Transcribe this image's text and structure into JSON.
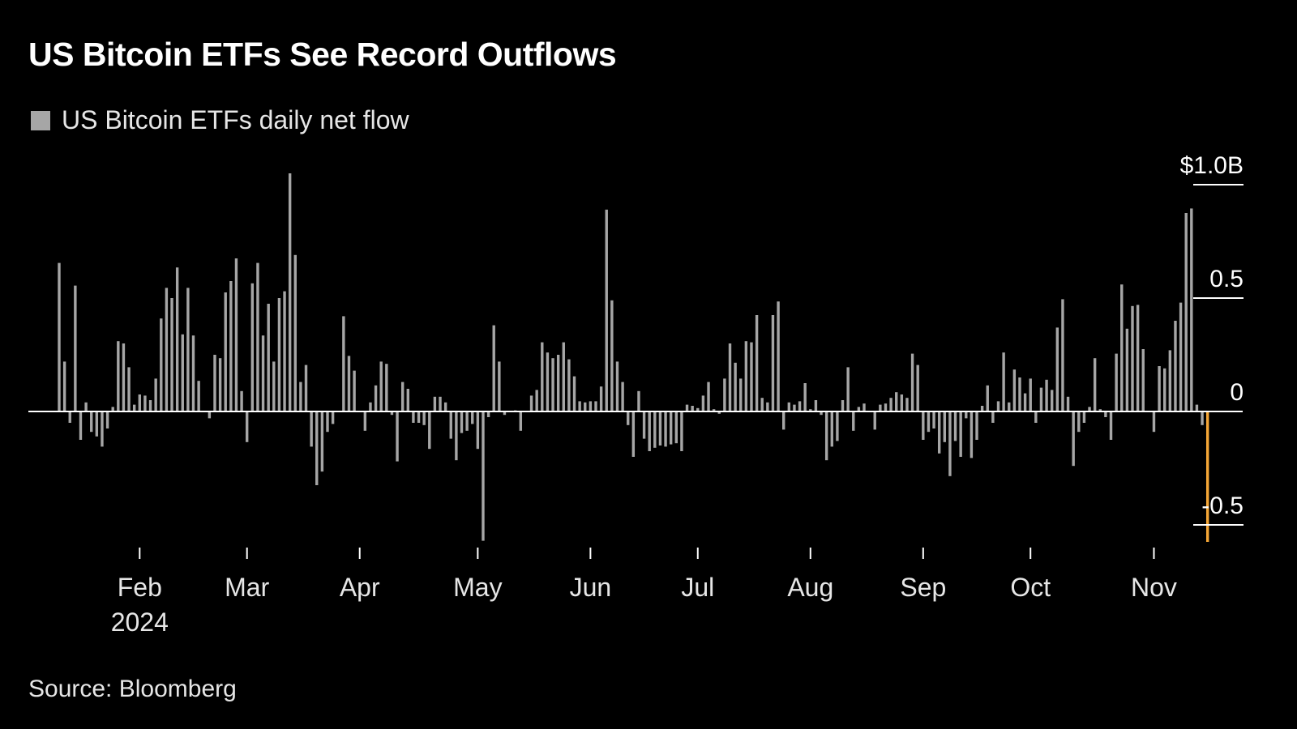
{
  "title": "US Bitcoin ETFs See Record Outflows",
  "source": "Source: Bloomberg",
  "colors": {
    "background": "#000000",
    "bar": "#a6a6a6",
    "highlight": "#f5a636",
    "axis": "#ffffff"
  },
  "chart_data": {
    "type": "bar",
    "title": "US Bitcoin ETFs See Record Outflows",
    "legend": {
      "entries": [
        "US Bitcoin ETFs daily net flow"
      ],
      "placement": "top-left"
    },
    "series": [
      {
        "name": "US Bitcoin ETFs daily net flow",
        "unit": "USD billions",
        "start_date": "2024-01-11",
        "frequency": "trading days",
        "values": [
          0.655,
          0.22,
          -0.05,
          0.555,
          -0.125,
          0.04,
          -0.09,
          -0.11,
          -0.155,
          -0.075,
          0.02,
          0.31,
          0.3,
          0.195,
          0.03,
          0.075,
          0.07,
          0.05,
          0.145,
          0.41,
          0.545,
          0.5,
          0.635,
          0.34,
          0.545,
          0.335,
          0.135,
          0.0,
          -0.03,
          0.25,
          0.235,
          0.525,
          0.575,
          0.675,
          0.09,
          -0.135,
          0.565,
          0.655,
          0.335,
          0.475,
          0.22,
          0.5,
          0.53,
          1.05,
          0.69,
          0.13,
          0.205,
          -0.155,
          -0.325,
          -0.265,
          -0.09,
          -0.055,
          0.0,
          0.42,
          0.245,
          0.18,
          0.0,
          -0.085,
          0.04,
          0.115,
          0.22,
          0.21,
          -0.015,
          -0.22,
          0.13,
          0.1,
          -0.05,
          -0.05,
          -0.06,
          -0.165,
          0.065,
          0.065,
          0.04,
          -0.12,
          -0.215,
          -0.095,
          -0.085,
          -0.055,
          -0.165,
          -0.57,
          -0.025,
          0.38,
          0.22,
          -0.015,
          0.0,
          0.005,
          -0.085,
          0.0,
          0.07,
          0.095,
          0.305,
          0.26,
          0.235,
          0.25,
          0.305,
          0.23,
          0.155,
          0.045,
          0.04,
          0.045,
          0.045,
          0.11,
          0.89,
          0.49,
          0.22,
          0.13,
          -0.06,
          -0.2,
          0.09,
          -0.12,
          -0.175,
          -0.16,
          -0.15,
          -0.155,
          -0.145,
          -0.14,
          -0.175,
          0.03,
          0.025,
          0.015,
          0.07,
          0.13,
          0.01,
          -0.01,
          0.145,
          0.3,
          0.215,
          0.145,
          0.31,
          0.305,
          0.425,
          0.06,
          0.04,
          0.425,
          0.485,
          -0.08,
          0.04,
          0.03,
          0.045,
          0.125,
          0.01,
          0.05,
          -0.015,
          -0.215,
          -0.155,
          -0.13,
          0.05,
          0.195,
          -0.085,
          0.02,
          0.035,
          0.0,
          -0.08,
          0.03,
          0.035,
          0.06,
          0.085,
          0.075,
          0.06,
          0.255,
          0.205,
          -0.125,
          -0.09,
          -0.075,
          -0.185,
          -0.135,
          -0.285,
          -0.13,
          -0.2,
          -0.03,
          -0.205,
          -0.125,
          0.025,
          0.115,
          -0.05,
          0.045,
          0.26,
          0.04,
          0.185,
          0.15,
          0.08,
          0.145,
          -0.05,
          0.105,
          0.14,
          0.095,
          0.37,
          0.495,
          0.065,
          -0.24,
          -0.09,
          -0.05,
          0.02,
          0.235,
          0.01,
          -0.025,
          -0.125,
          0.255,
          0.56,
          0.365,
          0.465,
          0.47,
          0.275,
          0.0,
          -0.09,
          0.2,
          0.19,
          0.27,
          0.4,
          0.48,
          0.875,
          0.895,
          0.03,
          -0.06,
          -0.575
        ],
        "highlight_last": true
      }
    ],
    "x_axis": {
      "ticks": [
        {
          "label": "Feb",
          "date": "2024-02-01",
          "index": 15
        },
        {
          "label": "Mar",
          "date": "2024-03-01",
          "index": 35
        },
        {
          "label": "Apr",
          "date": "2024-04-01",
          "index": 56
        },
        {
          "label": "May",
          "date": "2024-05-01",
          "index": 78
        },
        {
          "label": "Jun",
          "date": "2024-06-01",
          "index": 99
        },
        {
          "label": "Jul",
          "date": "2024-07-01",
          "index": 119
        },
        {
          "label": "Aug",
          "date": "2024-08-01",
          "index": 140
        },
        {
          "label": "Sep",
          "date": "2024-09-01",
          "index": 161
        },
        {
          "label": "Oct",
          "date": "2024-10-01",
          "index": 181
        },
        {
          "label": "Nov",
          "date": "2024-11-01",
          "index": 204
        }
      ],
      "year_label": "2024"
    },
    "y_axis": {
      "ylim": [
        -0.6,
        1.1
      ],
      "ticks": [
        {
          "value": 1.0,
          "label": "$1.0B"
        },
        {
          "value": 0.5,
          "label": "0.5"
        },
        {
          "value": 0.0,
          "label": "0"
        },
        {
          "value": -0.5,
          "label": "-0.5"
        }
      ],
      "placement": "right"
    },
    "grid": false
  }
}
